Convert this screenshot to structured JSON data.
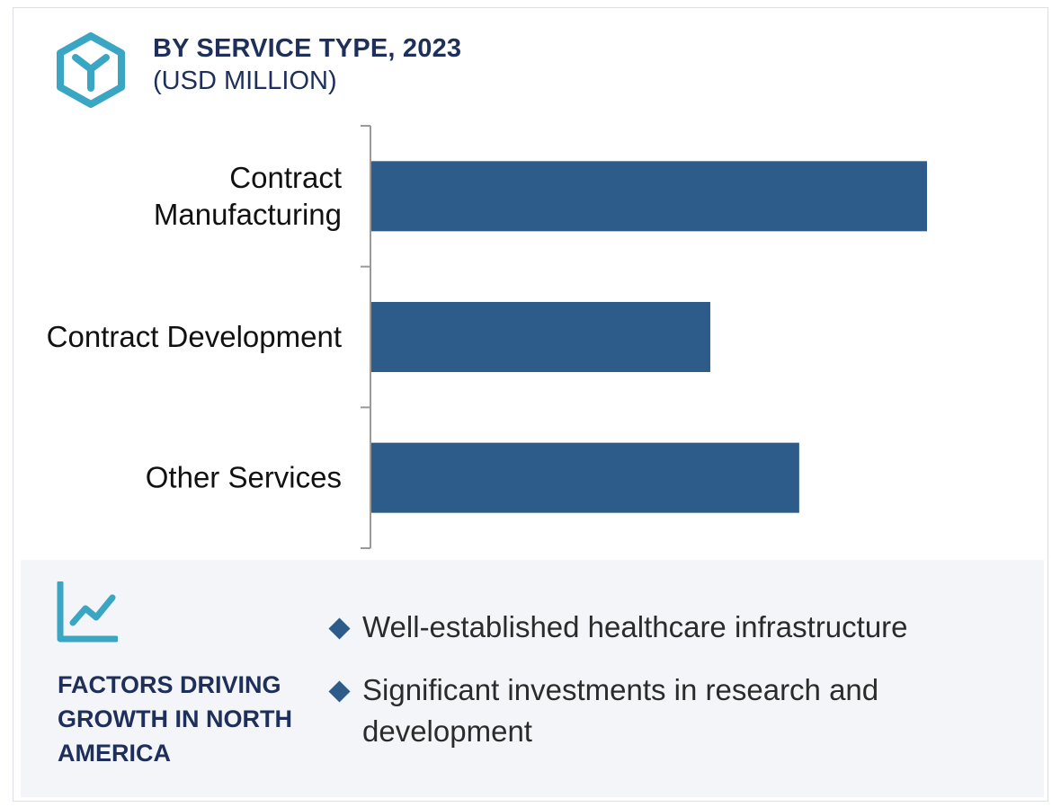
{
  "header": {
    "title": "BY SERVICE TYPE, 2023",
    "subtitle": "(USD MILLION)",
    "logo_icon": "y-hexagon-logo-icon"
  },
  "colors": {
    "bar": "#2d5b8a",
    "title": "#1d2f5a",
    "accent": "#3aa6c4",
    "footer_bg": "#f3f5f8"
  },
  "chart_data": {
    "type": "bar",
    "orientation": "horizontal",
    "title": "BY SERVICE TYPE, 2023",
    "subtitle": "(USD MILLION)",
    "categories": [
      "Contract Manufacturing",
      "Contract Development",
      "Other Services"
    ],
    "category_lines": [
      [
        "Contract",
        "Manufacturing"
      ],
      [
        "Contract Development"
      ],
      [
        "Other Services"
      ]
    ],
    "values": [
      100,
      61,
      77
    ],
    "xlim": [
      0,
      100
    ],
    "grid": false,
    "legend": "none",
    "value_axis_labels": false
  },
  "footer": {
    "icon": "trend-line-chart-icon",
    "title": "FACTORS DRIVING GROWTH IN NORTH AMERICA",
    "factors": [
      "Well-established healthcare infrastructure",
      "Significant investments in research and development"
    ]
  }
}
